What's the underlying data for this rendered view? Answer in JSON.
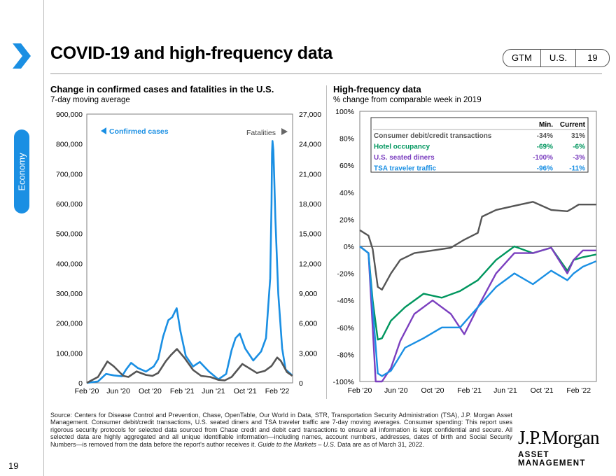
{
  "page": {
    "title": "COVID-19 and high-frequency data",
    "badges": [
      "GTM",
      "U.S.",
      "19"
    ],
    "section": "Economy",
    "page_number": "19",
    "footnote": "Source: Centers for Disease Control and Prevention, Chase, OpenTable, Our World in Data, STR, Transportation Security Administration (TSA), J.P. Morgan Asset Management. Consumer debit/credit transactions, U.S. seated diners and TSA traveler traffic are 7-day moving averages. Consumer spending: This report uses rigorous security protocols for selected data sourced from Chase credit and debit card transactions to ensure all information is kept confidential and secure. All selected data are highly aggregated and all unique identifiable information—including names, account numbers, addresses, dates of birth and Social Security Numbers—is removed from the data before the report's author receives it.",
    "footnote_italic": "Guide to the Markets – U.S.",
    "footnote_tail": " Data are as of March 31, 2022.",
    "logo": {
      "main": "J.P.Morgan",
      "sub": "ASSET MANAGEMENT"
    },
    "colors": {
      "accent": "#1a8fe3",
      "chevron": "#1a8fe3"
    }
  },
  "chart_data": [
    {
      "type": "line",
      "title": "Change in confirmed cases and fatalities in the U.S.",
      "subtitle": "7-day moving average",
      "x_ticks": [
        "Feb '20",
        "Jun '20",
        "Oct '20",
        "Feb '21",
        "Jun '21",
        "Oct '21",
        "Feb '22"
      ],
      "y_left_ticks": [
        "900,000",
        "800,000",
        "700,000",
        "600,000",
        "500,000",
        "400,000",
        "300,000",
        "200,000",
        "100,000",
        "0"
      ],
      "y_right_ticks": [
        "27,000",
        "24,000",
        "21,000",
        "18,000",
        "15,000",
        "12,000",
        "9,000",
        "6,000",
        "3,000",
        "0"
      ],
      "ylim_left": [
        0,
        900000
      ],
      "ylim_right": [
        0,
        27000
      ],
      "annotations": {
        "left": "Confirmed cases",
        "right": "Fatalities"
      },
      "series": [
        {
          "name": "Confirmed cases",
          "axis": "left",
          "color": "#1a8fe3",
          "x": [
            "2020-02-01",
            "2020-03-15",
            "2020-04-15",
            "2020-05-15",
            "2020-06-15",
            "2020-07-01",
            "2020-07-20",
            "2020-08-15",
            "2020-09-15",
            "2020-10-15",
            "2020-11-01",
            "2020-11-20",
            "2020-12-10",
            "2020-12-25",
            "2021-01-05",
            "2021-01-11",
            "2021-01-25",
            "2021-02-15",
            "2021-03-15",
            "2021-04-10",
            "2021-05-15",
            "2021-06-20",
            "2021-07-20",
            "2021-08-10",
            "2021-08-25",
            "2021-09-10",
            "2021-10-01",
            "2021-11-01",
            "2021-12-01",
            "2021-12-20",
            "2022-01-05",
            "2022-01-10",
            "2022-01-12",
            "2022-01-14",
            "2022-01-17",
            "2022-01-20",
            "2022-01-25",
            "2022-02-05",
            "2022-02-20",
            "2022-03-05",
            "2022-03-31"
          ],
          "y": [
            0,
            5000,
            30000,
            25000,
            22000,
            45000,
            67000,
            50000,
            38000,
            55000,
            80000,
            155000,
            210000,
            220000,
            240000,
            250000,
            175000,
            90000,
            55000,
            70000,
            38000,
            12000,
            30000,
            110000,
            150000,
            165000,
            115000,
            75000,
            105000,
            150000,
            350000,
            600000,
            770000,
            810000,
            780000,
            700000,
            550000,
            300000,
            115000,
            45000,
            25000
          ]
        },
        {
          "name": "Fatalities",
          "axis": "right",
          "color": "#555555",
          "x": [
            "2020-02-01",
            "2020-03-15",
            "2020-04-20",
            "2020-05-15",
            "2020-06-20",
            "2020-07-10",
            "2020-08-10",
            "2020-09-15",
            "2020-10-10",
            "2020-11-01",
            "2020-12-01",
            "2020-12-20",
            "2021-01-12",
            "2021-02-10",
            "2021-03-15",
            "2021-04-15",
            "2021-05-20",
            "2021-06-20",
            "2021-07-15",
            "2021-08-10",
            "2021-09-20",
            "2021-10-15",
            "2021-11-15",
            "2021-12-15",
            "2022-01-10",
            "2022-02-01",
            "2022-02-15",
            "2022-03-10",
            "2022-03-31"
          ],
          "y": [
            0,
            600,
            2150,
            1650,
            700,
            600,
            1150,
            800,
            700,
            1000,
            2200,
            2800,
            3400,
            2500,
            1300,
            700,
            600,
            300,
            250,
            600,
            1900,
            1500,
            1000,
            1200,
            1700,
            2550,
            2200,
            1100,
            700
          ]
        }
      ]
    },
    {
      "type": "line",
      "title": "High-frequency data",
      "subtitle": "% change from comparable week in 2019",
      "x_ticks": [
        "Feb '20",
        "Jun '20",
        "Oct '20",
        "Feb '21",
        "Jun '21",
        "Oct '21",
        "Feb '22"
      ],
      "y_ticks": [
        "100%",
        "80%",
        "60%",
        "40%",
        "20%",
        "0%",
        "-20%",
        "-40%",
        "-60%",
        "-80%",
        "-100%"
      ],
      "ylim": [
        -100,
        100
      ],
      "table": {
        "headers": [
          "Min.",
          "Current"
        ],
        "rows": [
          {
            "label": "Consumer debit/credit transactions",
            "min": "-34%",
            "current": "31%",
            "color": "#555555"
          },
          {
            "label": "Hotel occupancy",
            "min": "-69%",
            "current": "-6%",
            "color": "#00965e"
          },
          {
            "label": "U.S. seated diners",
            "min": "-100%",
            "current": "-3%",
            "color": "#7b3fbf"
          },
          {
            "label": "TSA traveler traffic",
            "min": "-96%",
            "current": "-11%",
            "color": "#1a8fe3"
          }
        ]
      },
      "series": [
        {
          "name": "Consumer debit/credit transactions",
          "color": "#555555",
          "x": [
            "2020-02-01",
            "2020-03-01",
            "2020-03-15",
            "2020-04-01",
            "2020-04-15",
            "2020-05-15",
            "2020-06-15",
            "2020-08-01",
            "2020-10-01",
            "2020-12-01",
            "2021-01-15",
            "2021-03-01",
            "2021-03-15",
            "2021-05-01",
            "2021-07-01",
            "2021-09-01",
            "2021-11-01",
            "2021-12-25",
            "2022-01-10",
            "2022-02-01",
            "2022-03-01",
            "2022-03-31"
          ],
          "y": [
            12,
            8,
            -2,
            -30,
            -32,
            -20,
            -10,
            -5,
            -3,
            -1,
            5,
            10,
            22,
            27,
            30,
            33,
            27,
            26,
            28,
            31,
            31,
            31
          ]
        },
        {
          "name": "Hotel occupancy",
          "color": "#00965e",
          "x": [
            "2020-02-01",
            "2020-03-01",
            "2020-03-15",
            "2020-04-01",
            "2020-04-15",
            "2020-05-15",
            "2020-07-01",
            "2020-09-01",
            "2020-11-01",
            "2021-01-01",
            "2021-03-01",
            "2021-05-01",
            "2021-07-01",
            "2021-09-01",
            "2021-11-01",
            "2021-12-25",
            "2022-01-15",
            "2022-02-15",
            "2022-03-31"
          ],
          "y": [
            0,
            -5,
            -40,
            -69,
            -68,
            -55,
            -45,
            -35,
            -38,
            -33,
            -25,
            -10,
            0,
            -5,
            -1,
            -18,
            -10,
            -8,
            -6
          ]
        },
        {
          "name": "U.S. seated diners",
          "color": "#7b3fbf",
          "x": [
            "2020-02-01",
            "2020-03-01",
            "2020-03-15",
            "2020-03-25",
            "2020-04-15",
            "2020-05-15",
            "2020-06-15",
            "2020-08-01",
            "2020-10-01",
            "2020-12-01",
            "2021-01-15",
            "2021-03-01",
            "2021-05-01",
            "2021-07-01",
            "2021-09-01",
            "2021-11-01",
            "2021-12-25",
            "2022-01-15",
            "2022-02-15",
            "2022-03-31"
          ],
          "y": [
            0,
            -5,
            -60,
            -100,
            -100,
            -90,
            -70,
            -50,
            -40,
            -50,
            -65,
            -45,
            -20,
            -5,
            -5,
            -1,
            -20,
            -10,
            -3,
            -3
          ]
        },
        {
          "name": "TSA traveler traffic",
          "color": "#1a8fe3",
          "x": [
            "2020-02-01",
            "2020-03-01",
            "2020-03-15",
            "2020-04-01",
            "2020-04-15",
            "2020-05-15",
            "2020-07-01",
            "2020-09-01",
            "2020-11-01",
            "2021-01-01",
            "2021-03-01",
            "2021-05-01",
            "2021-07-01",
            "2021-09-01",
            "2021-11-01",
            "2021-12-25",
            "2022-01-15",
            "2022-02-15",
            "2022-03-31"
          ],
          "y": [
            0,
            -5,
            -45,
            -94,
            -96,
            -92,
            -75,
            -68,
            -60,
            -60,
            -45,
            -30,
            -20,
            -28,
            -18,
            -25,
            -20,
            -15,
            -11
          ]
        }
      ]
    }
  ]
}
